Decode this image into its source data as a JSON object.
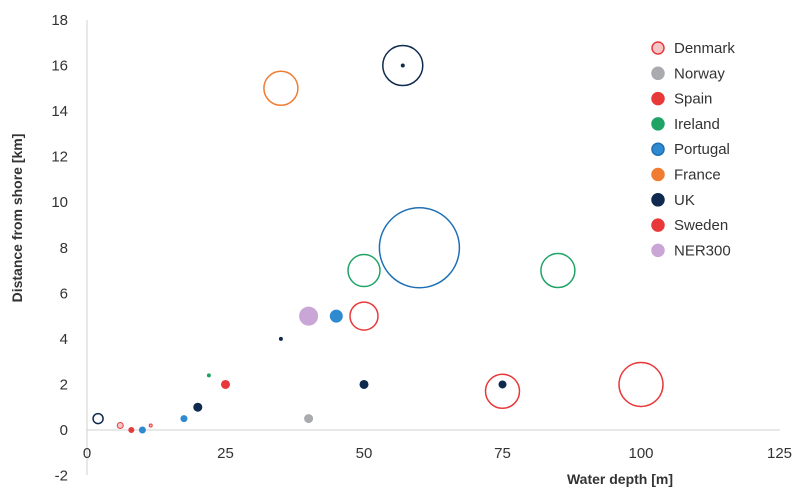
{
  "chart_data": {
    "type": "bubble",
    "xlabel": "Water depth [m]",
    "ylabel": "Distance from shore [km]",
    "xlim": [
      0,
      125
    ],
    "ylim": [
      -2,
      18
    ],
    "xticks": [
      0,
      25,
      50,
      75,
      100,
      125
    ],
    "yticks": [
      -2,
      0,
      2,
      4,
      6,
      8,
      10,
      12,
      14,
      16,
      18
    ],
    "grid": false,
    "legend_position": "top-right",
    "series": [
      {
        "name": "Denmark",
        "color": "#E8393A",
        "legend_fill": "#F6C6C6",
        "points": [
          {
            "x": 6,
            "y": 0.2,
            "size": 3,
            "fill": "#F6C6C6",
            "filled": true
          },
          {
            "x": 11.5,
            "y": 0.2,
            "size": 1.5,
            "fill": "#F6C6C6",
            "filled": true
          },
          {
            "x": 50,
            "y": 5,
            "size": 14,
            "fill": "none",
            "filled": false
          },
          {
            "x": 75,
            "y": 1.7,
            "size": 17,
            "fill": "none",
            "filled": false
          },
          {
            "x": 100,
            "y": 2,
            "size": 22,
            "fill": "none",
            "filled": false
          }
        ]
      },
      {
        "name": "Norway",
        "color": "#A9ABAE",
        "legend_fill": "#A9ABAE",
        "points": [
          {
            "x": 40,
            "y": 0.5,
            "size": 4,
            "fill": "#A9ABAE",
            "filled": true
          }
        ]
      },
      {
        "name": "Spain",
        "color": "#E8393A",
        "legend_fill": "#E8393A",
        "points": [
          {
            "x": 8,
            "y": 0,
            "size": 2.5,
            "fill": "#E8393A",
            "filled": true
          },
          {
            "x": 25,
            "y": 2,
            "size": 4,
            "fill": "#E8393A",
            "filled": true
          }
        ]
      },
      {
        "name": "Ireland",
        "color": "#1FA466",
        "legend_fill": "#1FA466",
        "points": [
          {
            "x": 22,
            "y": 2.4,
            "size": 1.5,
            "fill": "#1FA466",
            "filled": true
          },
          {
            "x": 50,
            "y": 7,
            "size": 16,
            "fill": "none",
            "filled": false
          },
          {
            "x": 85,
            "y": 7,
            "size": 17,
            "fill": "none",
            "filled": false
          }
        ]
      },
      {
        "name": "Portugal",
        "color": "#1E6FB6",
        "legend_fill": "#2F8AD0",
        "points": [
          {
            "x": 17.5,
            "y": 0.5,
            "size": 3,
            "fill": "#2F8AD0",
            "filled": true
          },
          {
            "x": 10,
            "y": 0,
            "size": 3,
            "fill": "#2F8AD0",
            "filled": true
          },
          {
            "x": 45,
            "y": 5,
            "size": 6,
            "fill": "#2F8AD0",
            "filled": true
          },
          {
            "x": 60,
            "y": 8,
            "size": 40,
            "fill": "none",
            "filled": false
          }
        ]
      },
      {
        "name": "France",
        "color": "#F07C32",
        "legend_fill": "#F07C32",
        "points": [
          {
            "x": 35,
            "y": 15,
            "size": 17,
            "fill": "none",
            "filled": false
          }
        ]
      },
      {
        "name": "UK",
        "color": "#0F2A4E",
        "legend_fill": "#0F2A4E",
        "points": [
          {
            "x": 2,
            "y": 0.5,
            "size": 5,
            "fill": "none",
            "filled": false
          },
          {
            "x": 20,
            "y": 1,
            "size": 4,
            "fill": "#0F2A4E",
            "filled": true
          },
          {
            "x": 35,
            "y": 4,
            "size": 1.5,
            "fill": "#0F2A4E",
            "filled": true
          },
          {
            "x": 50,
            "y": 2,
            "size": 4,
            "fill": "#0F2A4E",
            "filled": true
          },
          {
            "x": 57,
            "y": 16,
            "size": 1.5,
            "fill": "#0F2A4E",
            "filled": true
          },
          {
            "x": 57,
            "y": 16,
            "size": 20,
            "fill": "none",
            "filled": false
          },
          {
            "x": 75,
            "y": 2,
            "size": 3.5,
            "fill": "#0F2A4E",
            "filled": true
          }
        ]
      },
      {
        "name": "Sweden",
        "color": "#E8393A",
        "legend_fill": "#E8393A",
        "points": []
      },
      {
        "name": "NER300",
        "color": "#C9A6D6",
        "legend_fill": "#C9A6D6",
        "points": [
          {
            "x": 40,
            "y": 5,
            "size": 9,
            "fill": "#C9A6D6",
            "filled": true
          }
        ]
      }
    ]
  }
}
